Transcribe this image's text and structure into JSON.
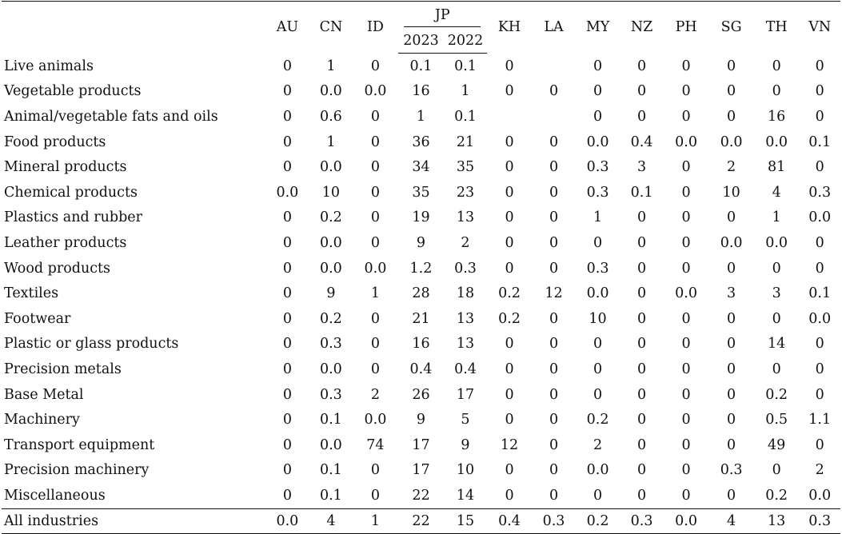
{
  "table": {
    "headers": {
      "countries_before_jp": [
        "AU",
        "CN",
        "ID"
      ],
      "jp": "JP",
      "jp_years": [
        "2023",
        "2022"
      ],
      "countries_after_jp": [
        "KH",
        "LA",
        "MY",
        "NZ",
        "PH",
        "SG",
        "TH",
        "VN"
      ]
    },
    "rows": [
      {
        "label": "Live animals",
        "values": [
          "0",
          "1",
          "0",
          "0.1",
          "0.1",
          "0",
          "",
          "0",
          "0",
          "0",
          "0",
          "0",
          "0"
        ]
      },
      {
        "label": "Vegetable products",
        "values": [
          "0",
          "0.0",
          "0.0",
          "16",
          "1",
          "0",
          "0",
          "0",
          "0",
          "0",
          "0",
          "0",
          "0"
        ]
      },
      {
        "label": "Animal/vegetable fats and oils",
        "values": [
          "0",
          "0.6",
          "0",
          "1",
          "0.1",
          "",
          "",
          "0",
          "0",
          "0",
          "0",
          "16",
          "0"
        ]
      },
      {
        "label": "Food products",
        "values": [
          "0",
          "1",
          "0",
          "36",
          "21",
          "0",
          "0",
          "0.0",
          "0.4",
          "0.0",
          "0.0",
          "0.0",
          "0.1"
        ]
      },
      {
        "label": "Mineral products",
        "values": [
          "0",
          "0.0",
          "0",
          "34",
          "35",
          "0",
          "0",
          "0.3",
          "3",
          "0",
          "2",
          "81",
          "0"
        ]
      },
      {
        "label": "Chemical products",
        "values": [
          "0.0",
          "10",
          "0",
          "35",
          "23",
          "0",
          "0",
          "0.3",
          "0.1",
          "0",
          "10",
          "4",
          "0.3"
        ]
      },
      {
        "label": "Plastics and rubber",
        "values": [
          "0",
          "0.2",
          "0",
          "19",
          "13",
          "0",
          "0",
          "1",
          "0",
          "0",
          "0",
          "1",
          "0.0"
        ]
      },
      {
        "label": "Leather products",
        "values": [
          "0",
          "0.0",
          "0",
          "9",
          "2",
          "0",
          "0",
          "0",
          "0",
          "0",
          "0.0",
          "0.0",
          "0"
        ]
      },
      {
        "label": "Wood products",
        "values": [
          "0",
          "0.0",
          "0.0",
          "1.2",
          "0.3",
          "0",
          "0",
          "0.3",
          "0",
          "0",
          "0",
          "0",
          "0"
        ]
      },
      {
        "label": "Textiles",
        "values": [
          "0",
          "9",
          "1",
          "28",
          "18",
          "0.2",
          "12",
          "0.0",
          "0",
          "0.0",
          "3",
          "3",
          "0.1"
        ]
      },
      {
        "label": "Footwear",
        "values": [
          "0",
          "0.2",
          "0",
          "21",
          "13",
          "0.2",
          "0",
          "10",
          "0",
          "0",
          "0",
          "0",
          "0.0"
        ]
      },
      {
        "label": "Plastic or glass products",
        "values": [
          "0",
          "0.3",
          "0",
          "16",
          "13",
          "0",
          "0",
          "0",
          "0",
          "0",
          "0",
          "14",
          "0"
        ]
      },
      {
        "label": "Precision metals",
        "values": [
          "0",
          "0.0",
          "0",
          "0.4",
          "0.4",
          "0",
          "0",
          "0",
          "0",
          "0",
          "0",
          "0",
          "0"
        ]
      },
      {
        "label": "Base Metal",
        "values": [
          "0",
          "0.3",
          "2",
          "26",
          "17",
          "0",
          "0",
          "0",
          "0",
          "0",
          "0",
          "0.2",
          "0"
        ]
      },
      {
        "label": "Machinery",
        "values": [
          "0",
          "0.1",
          "0.0",
          "9",
          "5",
          "0",
          "0",
          "0.2",
          "0",
          "0",
          "0",
          "0.5",
          "1.1"
        ]
      },
      {
        "label": "Transport equipment",
        "values": [
          "0",
          "0.0",
          "74",
          "17",
          "9",
          "12",
          "0",
          "2",
          "0",
          "0",
          "0",
          "49",
          "0"
        ]
      },
      {
        "label": "Precision machinery",
        "values": [
          "0",
          "0.1",
          "0",
          "17",
          "10",
          "0",
          "0",
          "0.0",
          "0",
          "0",
          "0.3",
          "0",
          "2"
        ]
      },
      {
        "label": "Miscellaneous",
        "values": [
          "0",
          "0.1",
          "0",
          "22",
          "14",
          "0",
          "0",
          "0",
          "0",
          "0",
          "0",
          "0.2",
          "0.0"
        ]
      }
    ],
    "total": {
      "label": "All industries",
      "values": [
        "0.0",
        "4",
        "1",
        "22",
        "15",
        "0.4",
        "0.3",
        "0.2",
        "0.3",
        "0.0",
        "4",
        "13",
        "0.3"
      ]
    }
  }
}
